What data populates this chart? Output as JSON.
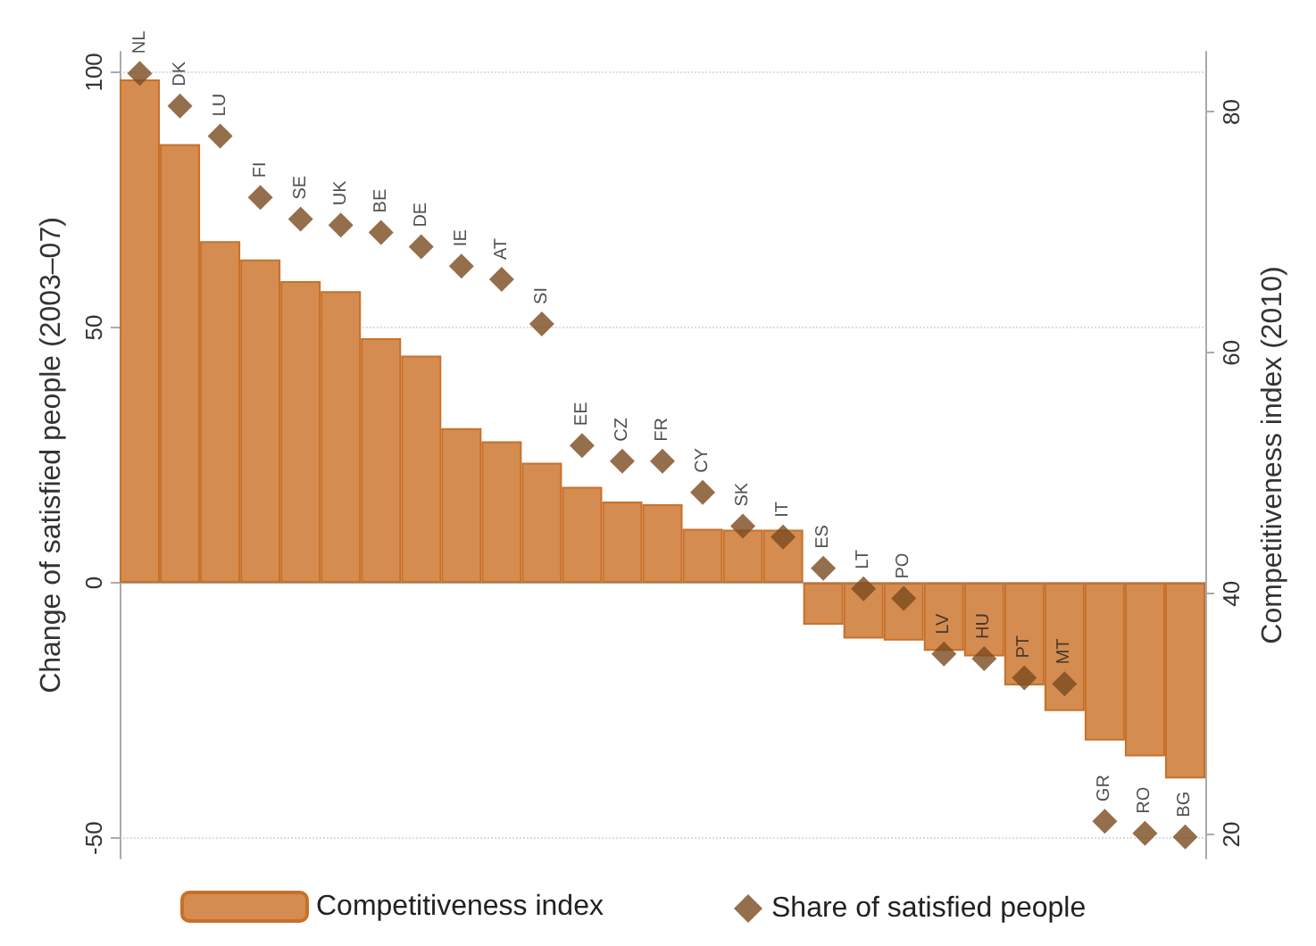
{
  "chart_data": {
    "type": "bar",
    "ylabel": "Change of satisfied people (2003–07)",
    "y2label": "Competitiveness index (2010)",
    "categories": [
      "NL",
      "DK",
      "LU",
      "FI",
      "SE",
      "UK",
      "BE",
      "DE",
      "IE",
      "AT",
      "SI",
      "EE",
      "CZ",
      "FR",
      "CY",
      "SK",
      "IT",
      "ES",
      "LT",
      "PO",
      "LV",
      "HU",
      "PT",
      "MT",
      "GR",
      "RO",
      "BG"
    ],
    "series": [
      {
        "name": "Competitiveness index",
        "color": "#d48c50",
        "values": [
          98.6,
          85.9,
          66.9,
          63.3,
          59.1,
          57.1,
          47.9,
          44.5,
          30.3,
          27.7,
          23.5,
          18.8,
          15.9,
          15.4,
          10.6,
          10.4,
          10.4,
          -8.2,
          -10.9,
          -11.3,
          -13.3,
          -14.4,
          -20.1,
          -25.1,
          -30.9,
          -34.0,
          -38.3
        ]
      },
      {
        "name": "Share of satisfied people",
        "type": "scatter",
        "axis": "y2",
        "color": "#7b4a1e",
        "values": [
          83.2,
          80.5,
          78.0,
          72.9,
          71.1,
          70.6,
          70.0,
          68.8,
          67.2,
          66.1,
          62.4,
          52.3,
          51.0,
          51.0,
          48.4,
          45.6,
          44.7,
          42.1,
          40.4,
          39.6,
          35.0,
          34.6,
          33.0,
          32.5,
          21.1,
          20.1,
          19.8
        ]
      }
    ],
    "ylim": [
      -54,
      104
    ],
    "yticks": [
      -50,
      0,
      50,
      100
    ],
    "y2lim": [
      18,
      85
    ],
    "y2ticks": [
      20,
      40,
      60,
      80
    ],
    "tick_labels": "y",
    "grid": "y",
    "legend": "bottom",
    "marker": "diamond"
  }
}
